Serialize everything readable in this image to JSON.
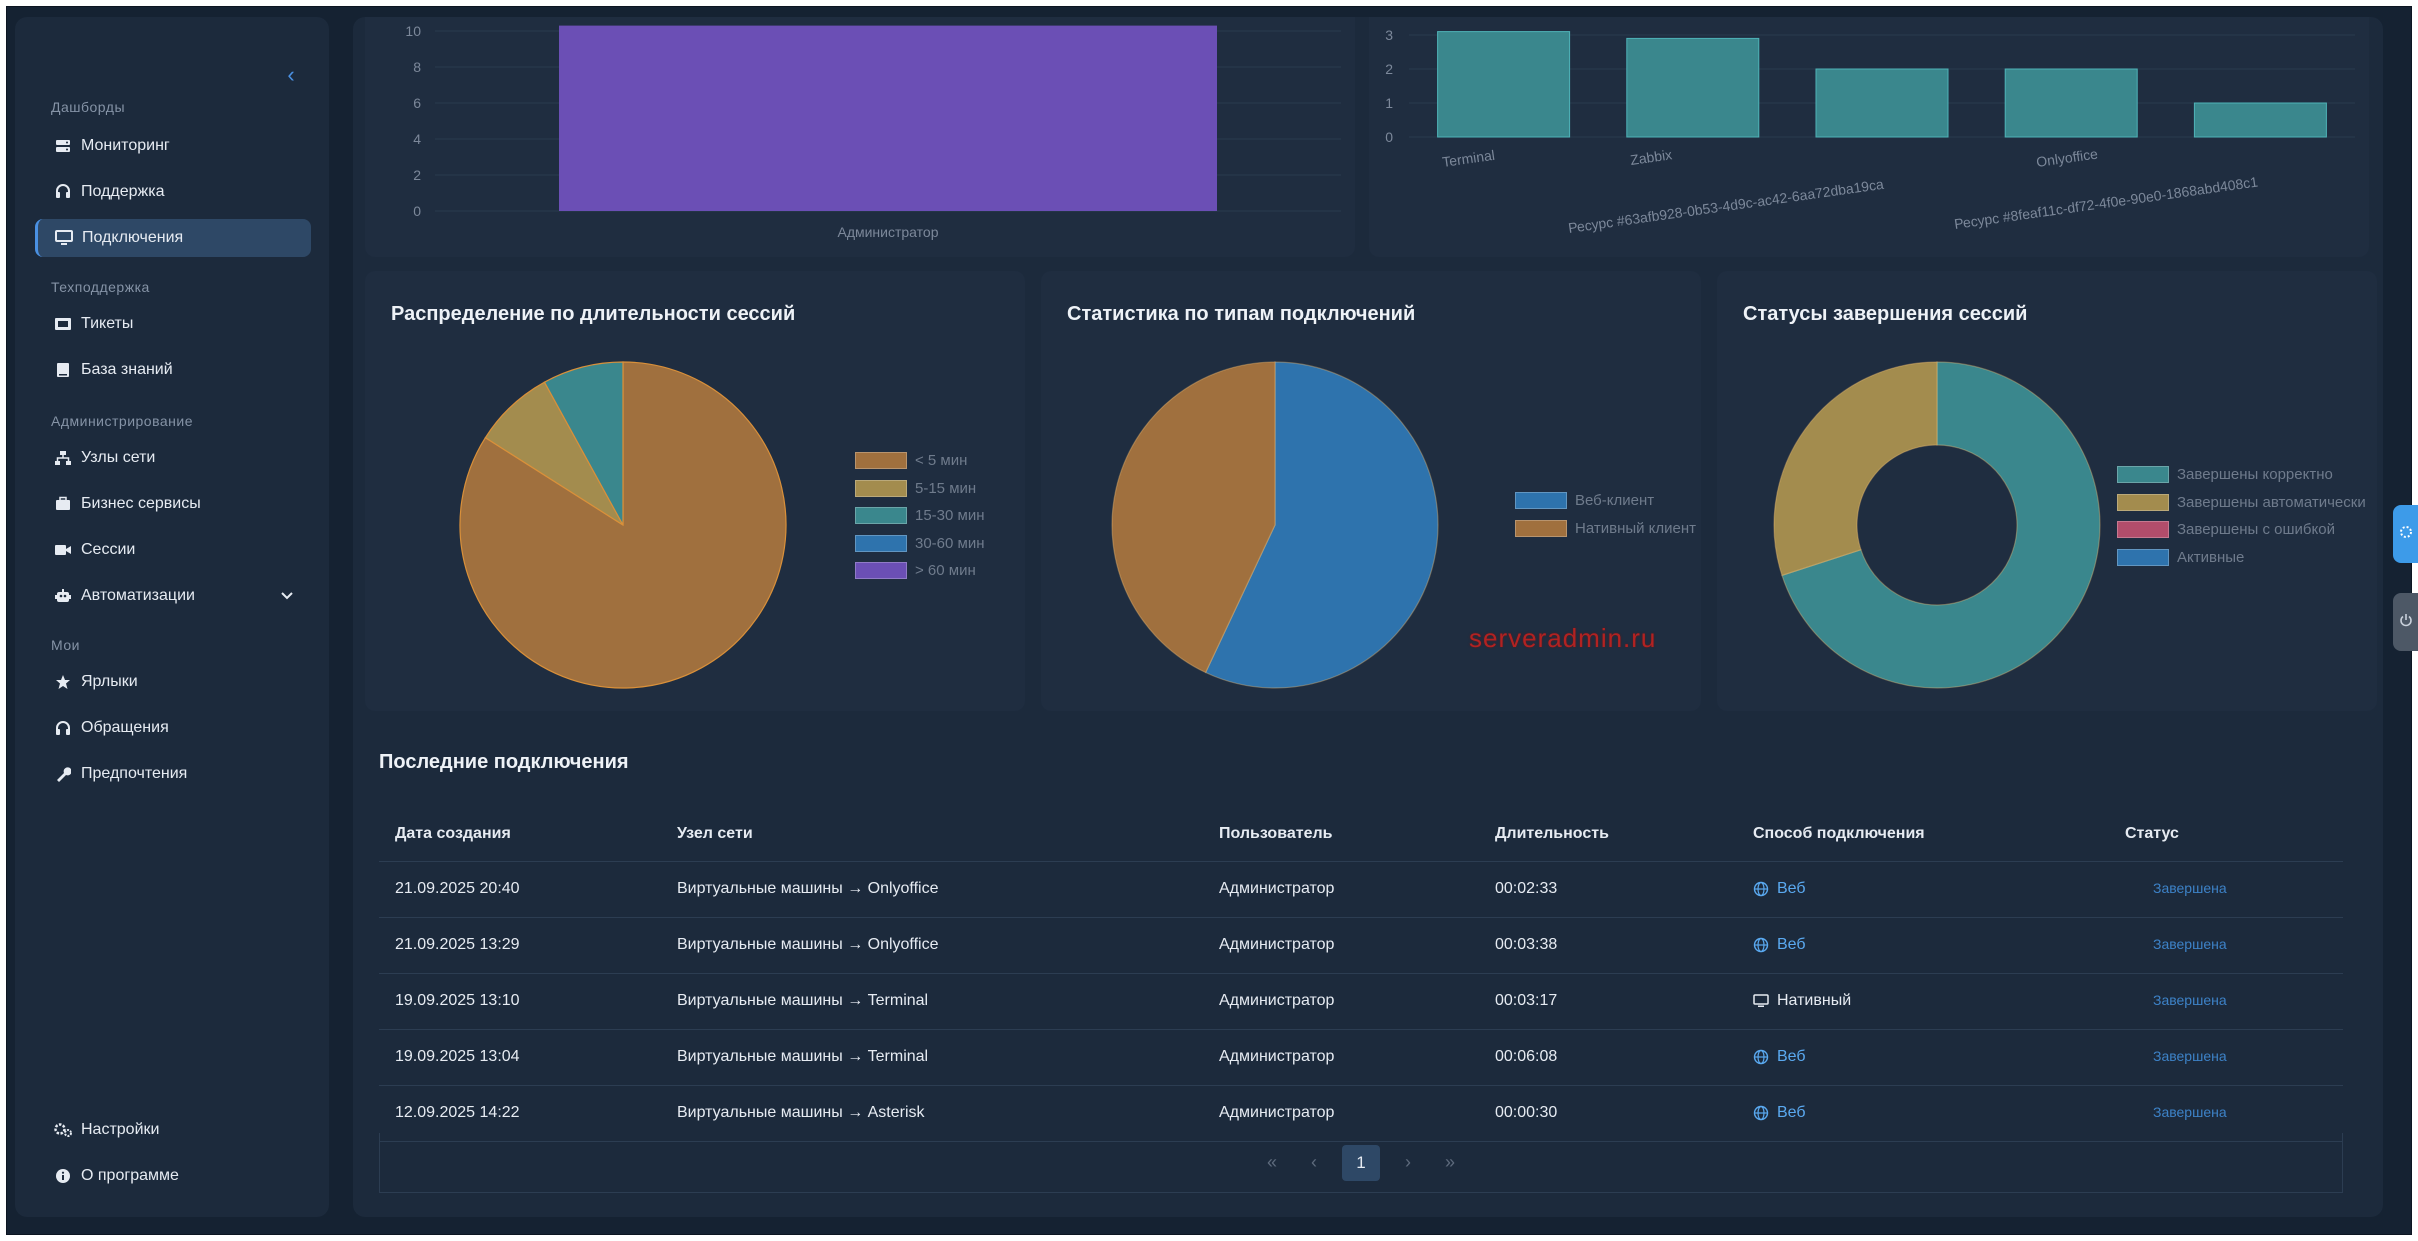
{
  "sidebar": {
    "sections": [
      {
        "title": "Дашборды",
        "items": [
          {
            "label": "Мониторинг",
            "icon": "server-icon"
          },
          {
            "label": "Поддержка",
            "icon": "headset-icon"
          },
          {
            "label": "Подключения",
            "icon": "monitor-icon",
            "active": true
          }
        ]
      },
      {
        "title": "Техподдержка",
        "items": [
          {
            "label": "Тикеты",
            "icon": "ticket-icon"
          },
          {
            "label": "База знаний",
            "icon": "book-icon"
          }
        ]
      },
      {
        "title": "Администрирование",
        "items": [
          {
            "label": "Узлы сети",
            "icon": "network-icon"
          },
          {
            "label": "Бизнес сервисы",
            "icon": "briefcase-icon"
          },
          {
            "label": "Сессии",
            "icon": "video-icon"
          },
          {
            "label": "Автоматизации",
            "icon": "robot-icon"
          }
        ]
      },
      {
        "title": "Мои",
        "items": [
          {
            "label": "Ярлыки",
            "icon": "star-icon"
          },
          {
            "label": "Обращения",
            "icon": "headphones-icon"
          },
          {
            "label": "Предпочтения",
            "icon": "wrench-icon"
          }
        ]
      }
    ],
    "bottom": [
      {
        "label": "Настройки",
        "icon": "gears-icon"
      },
      {
        "label": "О программе",
        "icon": "info-icon"
      }
    ]
  },
  "top_charts": {
    "left": {
      "category": "Администратор",
      "y_ticks": [
        "10",
        "8",
        "6",
        "4",
        "2",
        "0"
      ],
      "bar_color": "#6b4fb5"
    },
    "right": {
      "y_ticks": [
        "3",
        "2",
        "1",
        "0"
      ],
      "labels_upper": [
        "Terminal",
        "Zabbix",
        "Onlyoffice"
      ],
      "labels_lower": [
        "Ресурс #63afb928-0b53-4d9c-ac42-6aa72dba19ca",
        "Ресурс #8feaf11c-df72-4f0e-90e0-1868abd408c1"
      ],
      "bar_color": "#3a878d"
    }
  },
  "chart_data": [
    {
      "type": "bar",
      "categories": [
        "Администратор"
      ],
      "values": [
        10.3
      ],
      "ylim": [
        0,
        10
      ]
    },
    {
      "type": "bar",
      "categories": [
        "Terminal",
        "Zabbix",
        "Ресурс #63afb928-0b53-4d9c-ac42-6aa72dba19ca",
        "Onlyoffice",
        "Ресурс #8feaf11c-df72-4f0e-90e0-1868abd408c1"
      ],
      "values": [
        3.1,
        2.9,
        2,
        2,
        1
      ],
      "ylim": [
        0,
        3
      ]
    },
    {
      "type": "pie",
      "title": "Распределение по длительности сессий",
      "categories": [
        "< 5 мин",
        "5-15 мин",
        "15-30 мин",
        "30-60 мин",
        "> 60 мин"
      ],
      "values": [
        84,
        8,
        8,
        0,
        0
      ],
      "colors": [
        "#a0703e",
        "#a38c4e",
        "#3a878d",
        "#2e73ad",
        "#6b4fb5"
      ]
    },
    {
      "type": "pie",
      "title": "Статистика по типам подключений",
      "categories": [
        "Веб-клиент",
        "Нативный клиент"
      ],
      "values": [
        57,
        43
      ],
      "colors": [
        "#2e73ad",
        "#a0703e"
      ]
    },
    {
      "type": "pie",
      "title": "Статусы завершения сессий",
      "categories": [
        "Завершены корректно",
        "Завершены автоматически",
        "Завершены с ошибкой",
        "Активные"
      ],
      "values": [
        70,
        30,
        0,
        0
      ],
      "colors": [
        "#3a878d",
        "#a38c4e",
        "#b24d6b",
        "#2e73ad"
      ]
    }
  ],
  "pie_cards": [
    {
      "title": "Распределение по длительности сессий"
    },
    {
      "title": "Статистика по типам подключений"
    },
    {
      "title": "Статусы завершения сессий"
    }
  ],
  "table": {
    "title": "Последние подключения",
    "headers": [
      "Дата создания",
      "Узел сети",
      "Пользователь",
      "Длительность",
      "Способ подключения",
      "Статус"
    ],
    "rows": [
      {
        "date": "21.09.2025 20:40",
        "node": "Виртуальные машины → Onlyoffice",
        "user": "Администратор",
        "duration": "00:02:33",
        "method": "Веб",
        "method_icon": "globe-icon",
        "status": "Завершена"
      },
      {
        "date": "21.09.2025 13:29",
        "node": "Виртуальные машины → Onlyoffice",
        "user": "Администратор",
        "duration": "00:03:38",
        "method": "Веб",
        "method_icon": "globe-icon",
        "status": "Завершена"
      },
      {
        "date": "19.09.2025 13:10",
        "node": "Виртуальные машины → Terminal",
        "user": "Администратор",
        "duration": "00:03:17",
        "method": "Нативный",
        "method_icon": "monitor-icon",
        "status": "Завершена"
      },
      {
        "date": "19.09.2025 13:04",
        "node": "Виртуальные машины → Terminal",
        "user": "Администратор",
        "duration": "00:06:08",
        "method": "Веб",
        "method_icon": "globe-icon",
        "status": "Завершена"
      },
      {
        "date": "12.09.2025 14:22",
        "node": "Виртуальные машины → Asterisk",
        "user": "Администратор",
        "duration": "00:00:30",
        "method": "Веб",
        "method_icon": "globe-icon",
        "status": "Завершена"
      }
    ]
  },
  "pagination": {
    "first": "«",
    "prev": "‹",
    "current": "1",
    "next": "›",
    "last": "»"
  },
  "watermark": "serveradmin.ru"
}
